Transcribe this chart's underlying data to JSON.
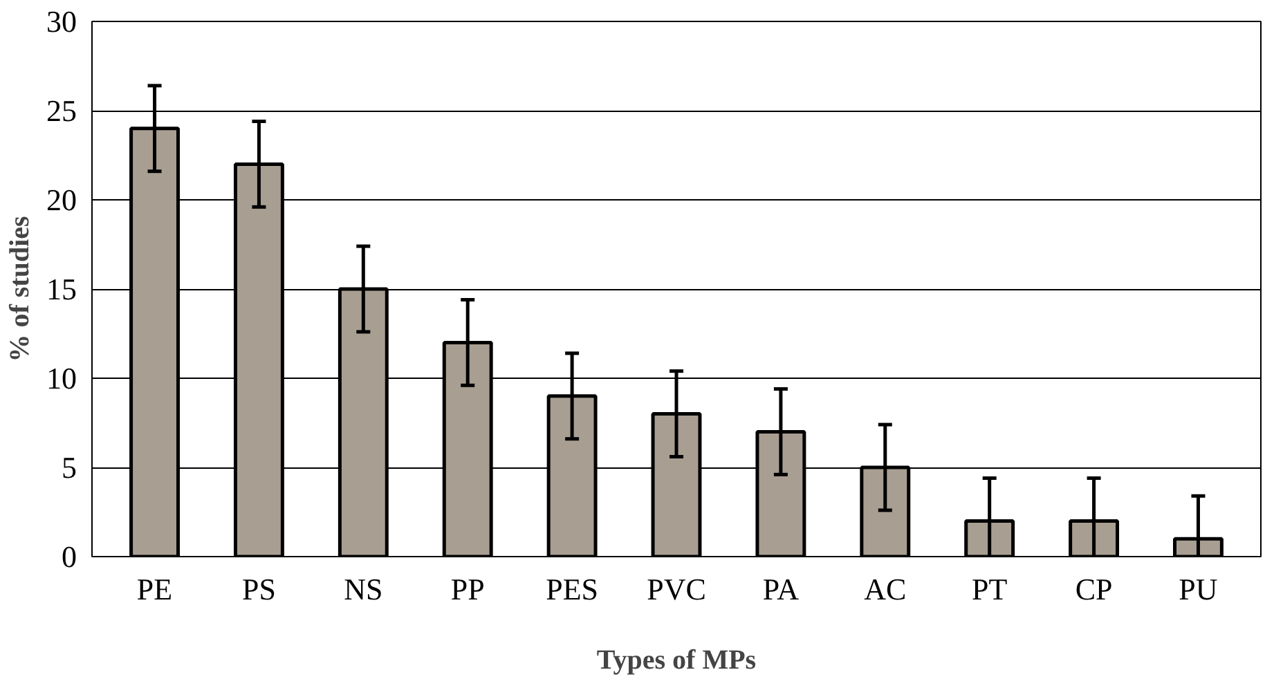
{
  "chart_data": {
    "type": "bar",
    "xlabel": "Types of MPs",
    "ylabel": "% of studies",
    "categories": [
      "PE",
      "PS",
      "NS",
      "PP",
      "PES",
      "PVC",
      "PA",
      "AC",
      "PT",
      "CP",
      "PU"
    ],
    "values": [
      24,
      22,
      15,
      12,
      9,
      8,
      7,
      5,
      2,
      2,
      1
    ],
    "errors": [
      2.4,
      2.4,
      2.4,
      2.4,
      2.4,
      2.4,
      2.4,
      2.4,
      2.4,
      2.4,
      2.4
    ],
    "color": "#a89e92",
    "ylim": [
      0,
      30
    ],
    "yticks": [
      0,
      5,
      10,
      15,
      20,
      25,
      30
    ],
    "grid": "y"
  }
}
